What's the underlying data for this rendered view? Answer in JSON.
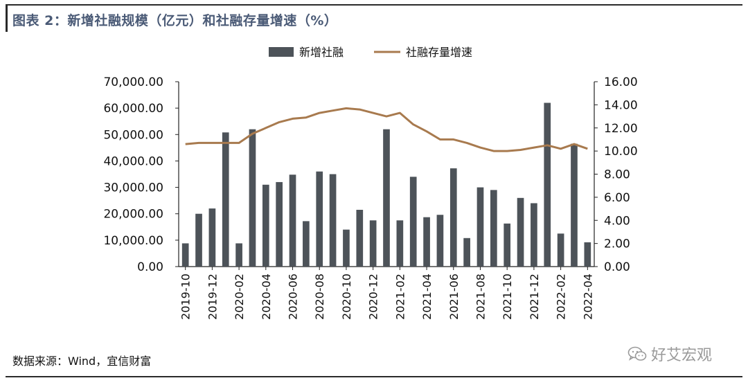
{
  "header": {
    "title": "图表 2：新增社融规模（亿元）和社融存量增速（%）"
  },
  "footer": {
    "source": "数据来源：Wind，宜信财富"
  },
  "watermark": {
    "text": "好艾宏观",
    "icon": "wechat-icon"
  },
  "colors": {
    "bar": "#4d5359",
    "line": "#a87a4e",
    "title": "#4a5a76"
  },
  "chart_data": {
    "type": "bar+line",
    "legend_position": "top-center",
    "legend": [
      "新增社融",
      "社融存量增速"
    ],
    "x": [
      "2019-10",
      "2019-11",
      "2019-12",
      "2020-01",
      "2020-02",
      "2020-03",
      "2020-04",
      "2020-05",
      "2020-06",
      "2020-07",
      "2020-08",
      "2020-09",
      "2020-10",
      "2020-11",
      "2020-12",
      "2021-01",
      "2021-02",
      "2021-03",
      "2021-04",
      "2021-05",
      "2021-06",
      "2021-07",
      "2021-08",
      "2021-09",
      "2021-10",
      "2021-11",
      "2021-12",
      "2022-01",
      "2022-02",
      "2022-03",
      "2022-04"
    ],
    "x_tick_labels": [
      "2019-10",
      "2019-12",
      "2020-02",
      "2020-04",
      "2020-06",
      "2020-08",
      "2020-10",
      "2020-12",
      "2021-02",
      "2021-04",
      "2021-06",
      "2021-08",
      "2021-10",
      "2021-12",
      "2022-02",
      "2022-04"
    ],
    "series": [
      {
        "name": "新增社融",
        "type": "bar",
        "axis": "left",
        "values": [
          8800,
          20000,
          22000,
          50800,
          8800,
          52000,
          31000,
          32000,
          34800,
          17200,
          36000,
          35000,
          14000,
          21500,
          17500,
          52000,
          17500,
          34000,
          18700,
          19600,
          37200,
          10800,
          30000,
          29000,
          16300,
          26000,
          24000,
          62000,
          12500,
          46500,
          9200
        ]
      },
      {
        "name": "社融存量增速",
        "type": "line",
        "axis": "right",
        "values": [
          10.6,
          10.7,
          10.7,
          10.7,
          10.7,
          11.5,
          12.0,
          12.5,
          12.8,
          12.9,
          13.3,
          13.5,
          13.7,
          13.6,
          13.3,
          13.0,
          13.3,
          12.3,
          11.7,
          11.0,
          11.0,
          10.7,
          10.3,
          10.0,
          10.0,
          10.1,
          10.3,
          10.5,
          10.2,
          10.6,
          10.2
        ]
      }
    ],
    "y_left": {
      "min": 0,
      "max": 70000,
      "ticks": [
        "0.00",
        "10,000.00",
        "20,000.00",
        "30,000.00",
        "40,000.00",
        "50,000.00",
        "60,000.00",
        "70,000.00"
      ]
    },
    "y_right": {
      "min": 0,
      "max": 16,
      "ticks": [
        "0.00",
        "2.00",
        "4.00",
        "6.00",
        "8.00",
        "10.00",
        "12.00",
        "14.00",
        "16.00"
      ]
    },
    "grid": false
  }
}
